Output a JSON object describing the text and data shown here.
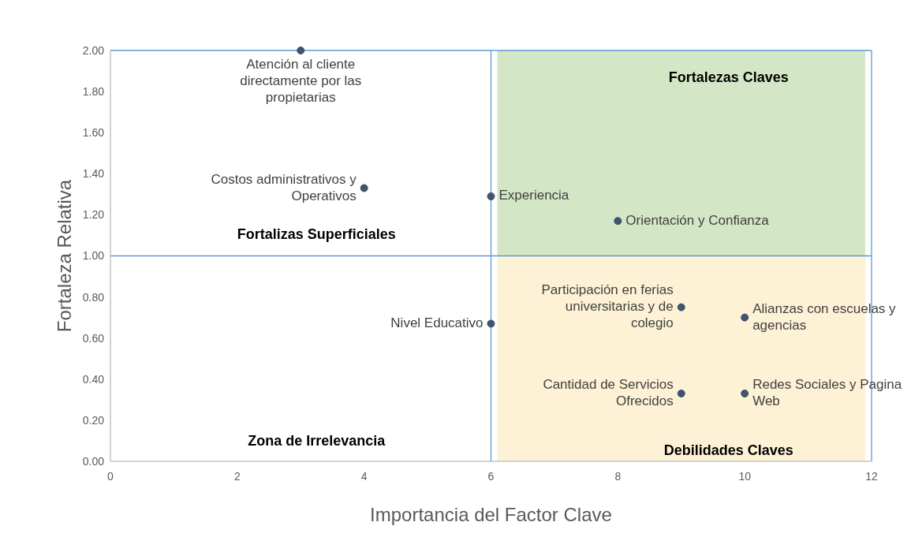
{
  "chart_data": {
    "type": "scatter",
    "xlabel": "Importancia del Factor Clave",
    "ylabel": "Fortaleza Relativa",
    "x": [
      3,
      4,
      6,
      8,
      9,
      10,
      6,
      9,
      10
    ],
    "series": [
      {
        "color": "#3e5670",
        "values": [
          2.0,
          1.33,
          1.29,
          1.17,
          0.75,
          0.7,
          0.67,
          0.33,
          0.33
        ]
      }
    ],
    "marker": "circle",
    "grid": false,
    "xlim": [
      0,
      12
    ],
    "xticks": [
      0,
      2,
      4,
      6,
      8,
      10,
      12
    ],
    "ylim": [
      0,
      2
    ],
    "yticks": [
      {
        "value": 0,
        "label": "0.00"
      },
      {
        "value": 0.2,
        "label": "0.20"
      },
      {
        "value": 0.4,
        "label": "0.40"
      },
      {
        "value": 0.6,
        "label": "0.60"
      },
      {
        "value": 0.8,
        "label": "0.80"
      },
      {
        "value": 1,
        "label": "1.00"
      },
      {
        "value": 1.2,
        "label": "1.20"
      },
      {
        "value": 1.4,
        "label": "1.40"
      },
      {
        "value": 1.6,
        "label": "1.60"
      },
      {
        "value": 1.8,
        "label": "1.80"
      },
      {
        "value": 2,
        "label": "2.00"
      }
    ],
    "ref_lines": [
      {
        "axis": "x",
        "value": 6,
        "color": "#5b9bd5"
      },
      {
        "axis": "y",
        "value": 1,
        "color": "#5b9bd5"
      }
    ],
    "annotations": [
      {
        "text": "Atención al cliente directamente por las propietarias",
        "x": 3,
        "y": 2.0
      },
      {
        "text": "Costos administrativos y Operativos",
        "x": 4,
        "y": 1.33
      },
      {
        "text": "Experiencia",
        "x": 6,
        "y": 1.29
      },
      {
        "text": "Orientación y Confianza",
        "x": 8,
        "y": 1.17
      },
      {
        "text": "Participación en ferias universitarias y de colegio",
        "x": 9,
        "y": 0.75
      },
      {
        "text": "Alianzas con escuelas y agencias",
        "x": 10,
        "y": 0.7
      },
      {
        "text": "Nivel Educativo",
        "x": 6,
        "y": 0.67
      },
      {
        "text": "Cantidad de Servicios Ofrecidos",
        "x": 9,
        "y": 0.33
      },
      {
        "text": "Redes Sociales y Pagina Web",
        "x": 10,
        "y": 0.33
      },
      "Fortalezas Claves",
      "Fortalizas Superficiales",
      "Zona de Irrelevancia",
      "Debilidades Claves"
    ]
  }
}
